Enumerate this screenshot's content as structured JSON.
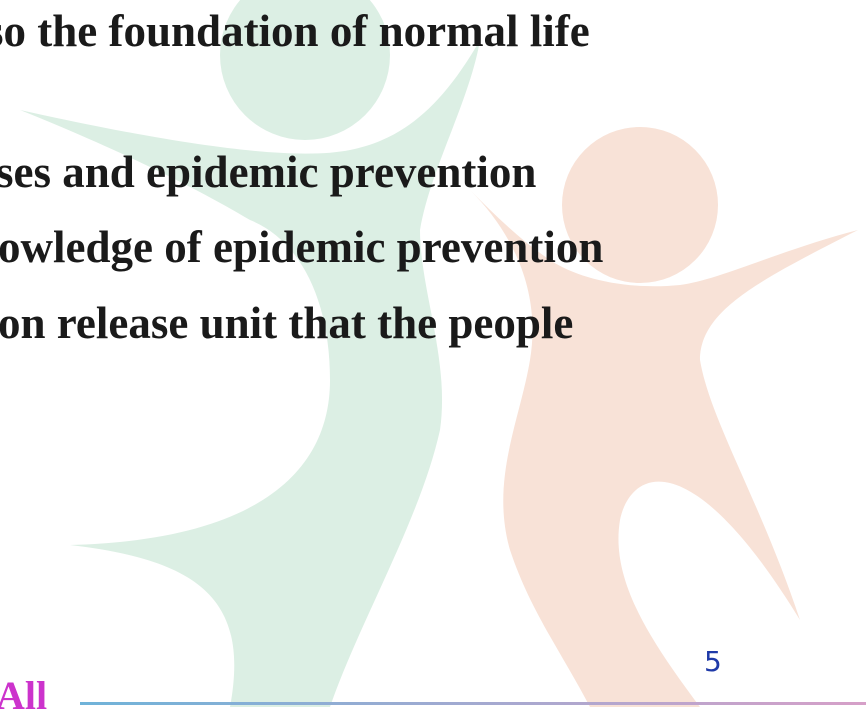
{
  "slide": {
    "lines": [
      "so the foundation of normal life",
      "ses and epidemic prevention",
      "owledge of epidemic prevention",
      "on release unit that the people"
    ],
    "page_number": "5",
    "footer": "All"
  }
}
